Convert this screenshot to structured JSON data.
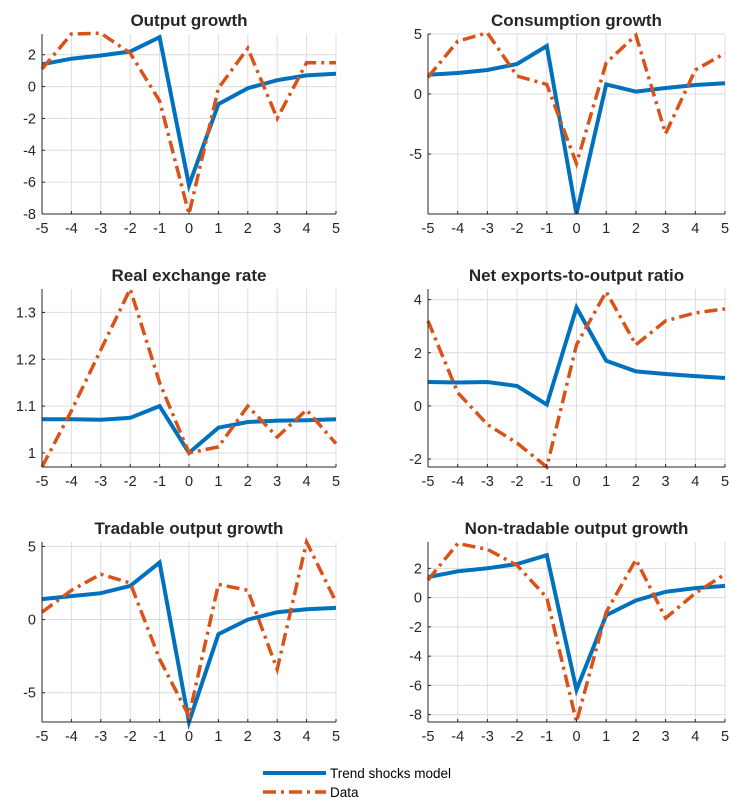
{
  "colors": {
    "model": "#0072BD",
    "data": "#D95319",
    "grid": "#dcdcdc",
    "axis": "#262626"
  },
  "legend": {
    "items": [
      {
        "label": "Trend shocks model",
        "series": "model"
      },
      {
        "label": "Data",
        "series": "data"
      }
    ]
  },
  "chart_data": [
    {
      "type": "line",
      "title": "Output growth",
      "x": [
        -5,
        -4,
        -3,
        -2,
        -1,
        0,
        1,
        2,
        3,
        4,
        5
      ],
      "xlim": [
        -5,
        5
      ],
      "ylim": [
        -8,
        3.3
      ],
      "yticks": [
        -8,
        -6,
        -4,
        -2,
        0,
        2
      ],
      "grid": true,
      "series": [
        {
          "name": "Trend shocks model",
          "key": "model",
          "values": [
            1.4,
            1.75,
            1.95,
            2.2,
            3.1,
            -6.2,
            -1.1,
            -0.1,
            0.4,
            0.7,
            0.8
          ]
        },
        {
          "name": "Data",
          "key": "data",
          "values": [
            1.1,
            3.3,
            3.35,
            2.1,
            -0.9,
            -8.0,
            -0.1,
            2.4,
            -2.0,
            1.5,
            1.5
          ]
        }
      ]
    },
    {
      "type": "line",
      "title": "Consumption growth",
      "x": [
        -5,
        -4,
        -3,
        -2,
        -1,
        0,
        1,
        2,
        3,
        4,
        5
      ],
      "xlim": [
        -5,
        5
      ],
      "ylim": [
        -10,
        5
      ],
      "yticks": [
        -5,
        0,
        5
      ],
      "grid": true,
      "series": [
        {
          "name": "Trend shocks model",
          "key": "model",
          "values": [
            1.6,
            1.75,
            2.0,
            2.5,
            4.0,
            -10.0,
            0.8,
            0.2,
            0.5,
            0.75,
            0.9
          ]
        },
        {
          "name": "Data",
          "key": "data",
          "values": [
            1.4,
            4.4,
            5.1,
            1.5,
            0.8,
            -5.8,
            2.6,
            4.9,
            -3.3,
            2.0,
            3.4
          ]
        }
      ]
    },
    {
      "type": "line",
      "title": "Real exchange rate",
      "x": [
        -5,
        -4,
        -3,
        -2,
        -1,
        0,
        1,
        2,
        3,
        4,
        5
      ],
      "xlim": [
        -5,
        5
      ],
      "ylim": [
        0.97,
        1.35
      ],
      "yticks": [
        1,
        1.1,
        1.2,
        1.3
      ],
      "grid": true,
      "series": [
        {
          "name": "Trend shocks model",
          "key": "model",
          "values": [
            1.072,
            1.072,
            1.071,
            1.075,
            1.1,
            1.0,
            1.054,
            1.066,
            1.069,
            1.07,
            1.072
          ]
        },
        {
          "name": "Data",
          "key": "data",
          "values": [
            0.97,
            1.09,
            1.22,
            1.35,
            1.15,
            1.0,
            1.013,
            1.1,
            1.034,
            1.092,
            1.02
          ]
        }
      ]
    },
    {
      "type": "line",
      "title": "Net exports-to-output ratio",
      "x": [
        -5,
        -4,
        -3,
        -2,
        -1,
        0,
        1,
        2,
        3,
        4,
        5
      ],
      "xlim": [
        -5,
        5
      ],
      "ylim": [
        -2.3,
        4.4
      ],
      "yticks": [
        -2,
        0,
        2,
        4
      ],
      "grid": true,
      "series": [
        {
          "name": "Trend shocks model",
          "key": "model",
          "values": [
            0.9,
            0.88,
            0.9,
            0.75,
            0.05,
            3.7,
            1.7,
            1.3,
            1.2,
            1.12,
            1.05
          ]
        },
        {
          "name": "Data",
          "key": "data",
          "values": [
            3.2,
            0.5,
            -0.7,
            -1.4,
            -2.3,
            2.3,
            4.3,
            2.3,
            3.2,
            3.5,
            3.65
          ]
        }
      ]
    },
    {
      "type": "line",
      "title": "Tradable output growth",
      "x": [
        -5,
        -4,
        -3,
        -2,
        -1,
        0,
        1,
        2,
        3,
        4,
        5
      ],
      "xlim": [
        -5,
        5
      ],
      "ylim": [
        -7,
        5.3
      ],
      "yticks": [
        -5,
        0,
        5
      ],
      "grid": true,
      "series": [
        {
          "name": "Trend shocks model",
          "key": "model",
          "values": [
            1.4,
            1.6,
            1.8,
            2.3,
            3.9,
            -7.0,
            -1.0,
            0.0,
            0.5,
            0.7,
            0.8
          ]
        },
        {
          "name": "Data",
          "key": "data",
          "values": [
            0.5,
            2.0,
            3.1,
            2.5,
            -2.7,
            -6.6,
            2.4,
            2.0,
            -3.4,
            5.3,
            1.2
          ]
        }
      ]
    },
    {
      "type": "line",
      "title": "Non-tradable output growth",
      "x": [
        -5,
        -4,
        -3,
        -2,
        -1,
        0,
        1,
        2,
        3,
        4,
        5
      ],
      "xlim": [
        -5,
        5
      ],
      "ylim": [
        -8.5,
        3.8
      ],
      "yticks": [
        -8,
        -6,
        -4,
        -2,
        0,
        2
      ],
      "grid": true,
      "series": [
        {
          "name": "Trend shocks model",
          "key": "model",
          "values": [
            1.4,
            1.8,
            2.0,
            2.3,
            2.9,
            -6.3,
            -1.2,
            -0.2,
            0.4,
            0.65,
            0.8
          ]
        },
        {
          "name": "Data",
          "key": "data",
          "values": [
            1.2,
            3.7,
            3.3,
            2.2,
            0.0,
            -8.5,
            -1.0,
            2.6,
            -1.4,
            0.3,
            1.6
          ]
        }
      ]
    }
  ]
}
